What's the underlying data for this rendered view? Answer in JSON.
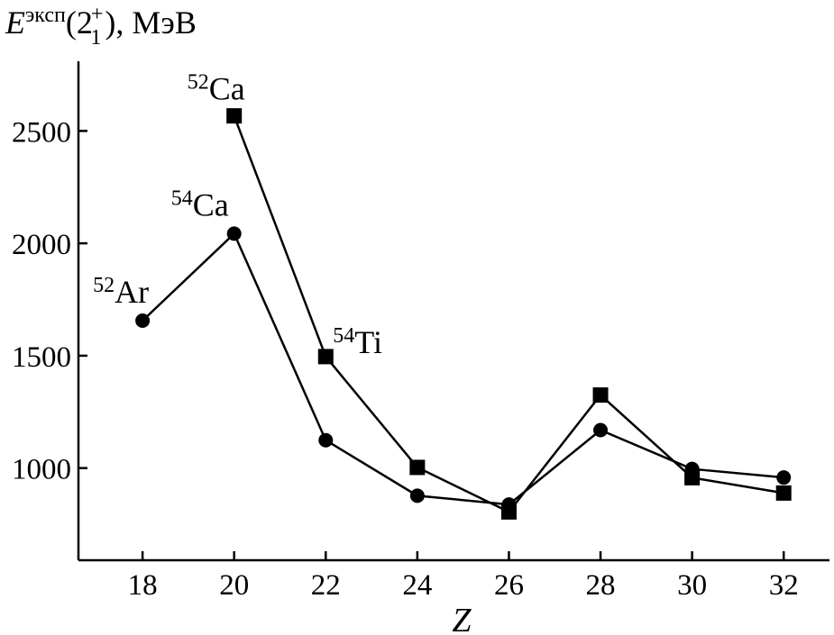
{
  "chart_data": {
    "type": "line",
    "ylabel": {
      "base": "E",
      "sup": "эксп",
      "open": "(2",
      "state_sub": "1",
      "state_sup": "+",
      "close": "), МэВ"
    },
    "xlabel": "Z",
    "x_ticks": [
      18,
      20,
      22,
      24,
      26,
      28,
      30,
      32
    ],
    "y_ticks": [
      1000,
      1500,
      2000,
      2500
    ],
    "xlim": [
      16.6,
      33
    ],
    "ylim": [
      590,
      2810
    ],
    "grid": false,
    "legend": "none",
    "series": [
      {
        "marker": "circle",
        "x": [
          18,
          20,
          22,
          24,
          26,
          28,
          30,
          32
        ],
        "y": [
          1656,
          2043,
          1124,
          877,
          838,
          1169,
          996,
          958
        ]
      },
      {
        "marker": "square",
        "x": [
          20,
          22,
          24,
          26,
          28,
          30,
          32
        ],
        "y": [
          2567,
          1496,
          1003,
          805,
          1325,
          957,
          889
        ]
      }
    ],
    "annotations": [
      {
        "mass": "52",
        "element": "Ar",
        "x": 18,
        "y": 1656,
        "dx": -55,
        "dy": -20
      },
      {
        "mass": "54",
        "element": "Ca",
        "x": 20,
        "y": 2043,
        "dx": -70,
        "dy": -20
      },
      {
        "mass": "52",
        "element": "Ca",
        "x": 20,
        "y": 2567,
        "dx": -52,
        "dy": -18
      },
      {
        "mass": "54",
        "element": "Ti",
        "x": 22,
        "y": 1496,
        "dx": 8,
        "dy": -4
      }
    ]
  }
}
